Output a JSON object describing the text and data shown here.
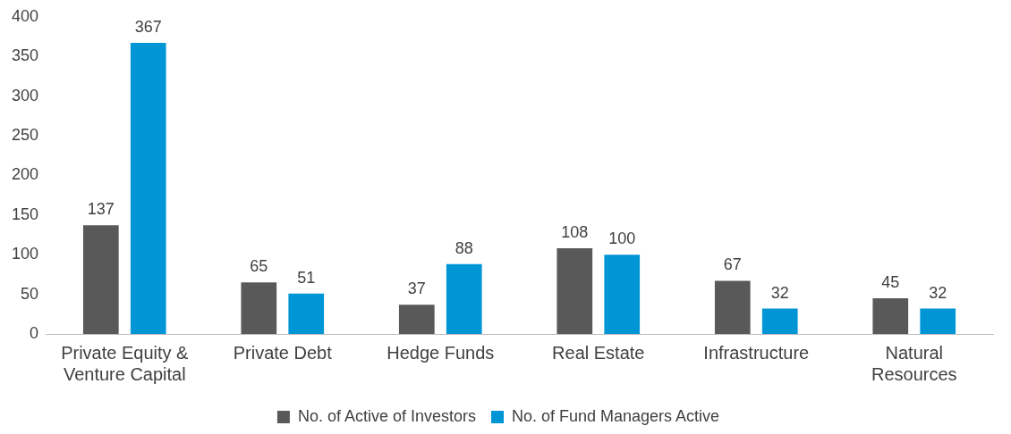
{
  "chart_data": {
    "type": "bar",
    "categories": [
      "Private Equity & Venture Capital",
      "Private Debt",
      "Hedge Funds",
      "Real Estate",
      "Infrastructure",
      "Natural Resources"
    ],
    "series": [
      {
        "name": "No. of Active of Investors",
        "color": "#595959",
        "values": [
          137,
          65,
          37,
          108,
          67,
          45
        ]
      },
      {
        "name": "No. of Fund Managers Active",
        "color": "#0096d6",
        "values": [
          367,
          51,
          88,
          100,
          32,
          32
        ]
      }
    ],
    "ylim": [
      0,
      400
    ],
    "yticks": [
      0,
      50,
      100,
      150,
      200,
      250,
      300,
      350,
      400
    ],
    "grid": false,
    "legend": "bottom",
    "data_labels": true
  }
}
